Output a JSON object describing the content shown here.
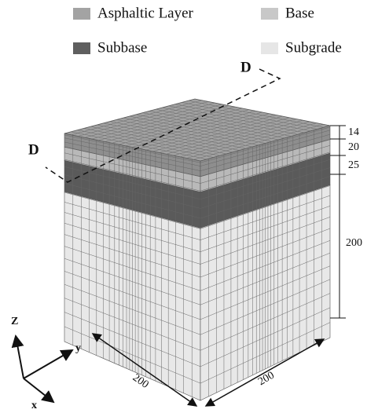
{
  "legend": [
    "Asphaltic Layer",
    "Base",
    "Subbase",
    "Subgrade"
  ],
  "section_labels": [
    "D",
    "D"
  ],
  "layer_thicknesses": [
    14,
    20,
    25,
    200
  ],
  "width_x": 200,
  "width_y": 200,
  "axes": {
    "z": "Z",
    "y": "y",
    "x": "x"
  }
}
